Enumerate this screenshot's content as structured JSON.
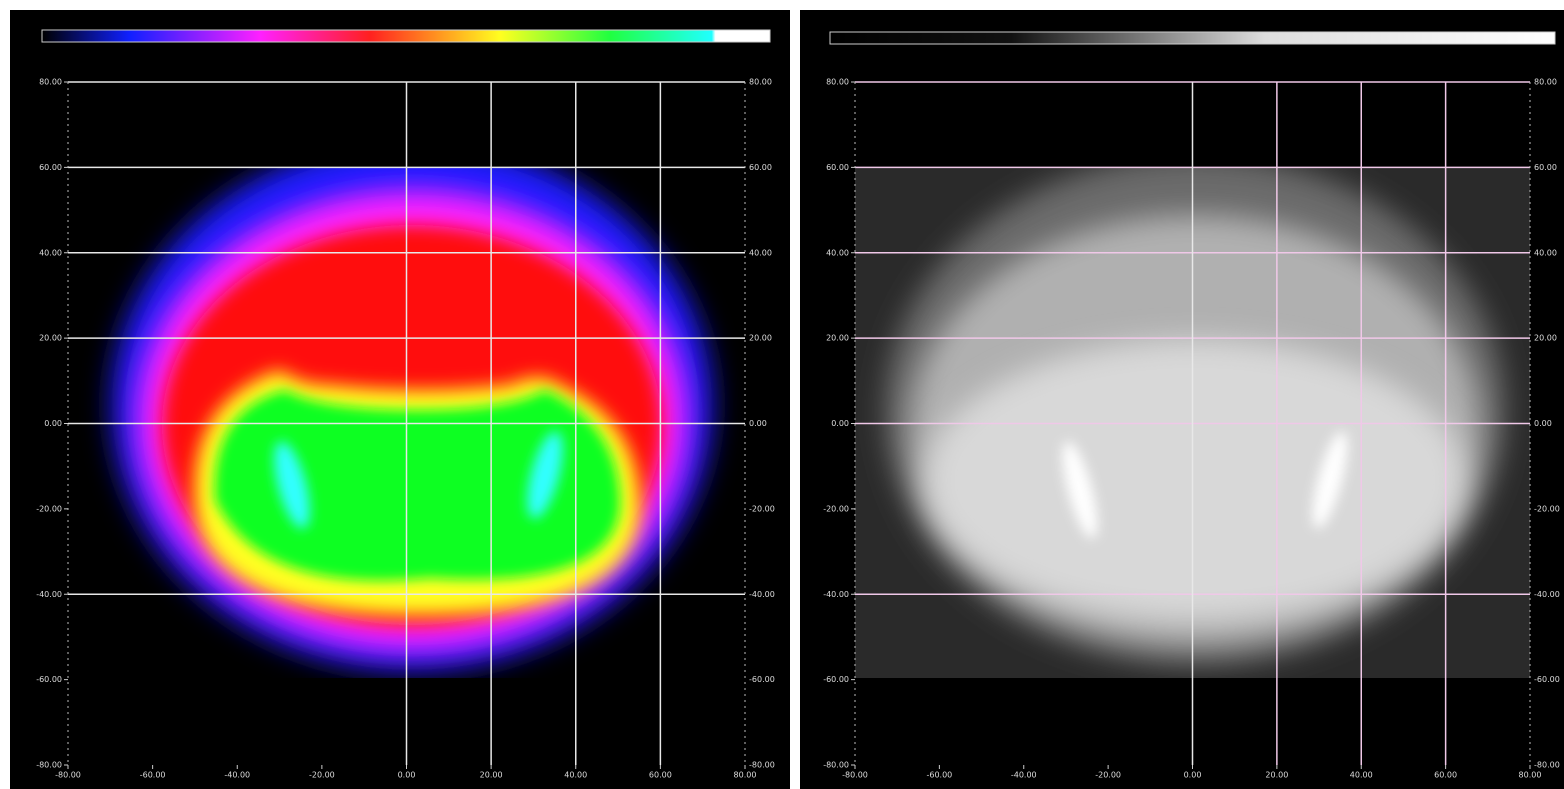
{
  "panels": [
    {
      "y_ticks": [
        "80.00",
        "60.00",
        "40.00",
        "20.00",
        "0.00",
        "-20.00",
        "-40.00",
        "-60.00",
        "-80.00"
      ],
      "x_ticks": [
        "-80.00",
        "-60.00",
        "-40.00",
        "-20.00",
        "0.00",
        "20.00",
        "40.00",
        "60.00",
        "80.00"
      ]
    },
    {
      "y_ticks": [
        "80.00",
        "60.00",
        "40.00",
        "20.00",
        "0.00",
        "-20.00",
        "-40.00",
        "-60.00",
        "-80.00"
      ],
      "x_ticks": [
        "-80.00",
        "-60.00",
        "-40.00",
        "-20.00",
        "0.00",
        "20.00",
        "40.00",
        "60.00",
        "80.00"
      ]
    }
  ]
}
